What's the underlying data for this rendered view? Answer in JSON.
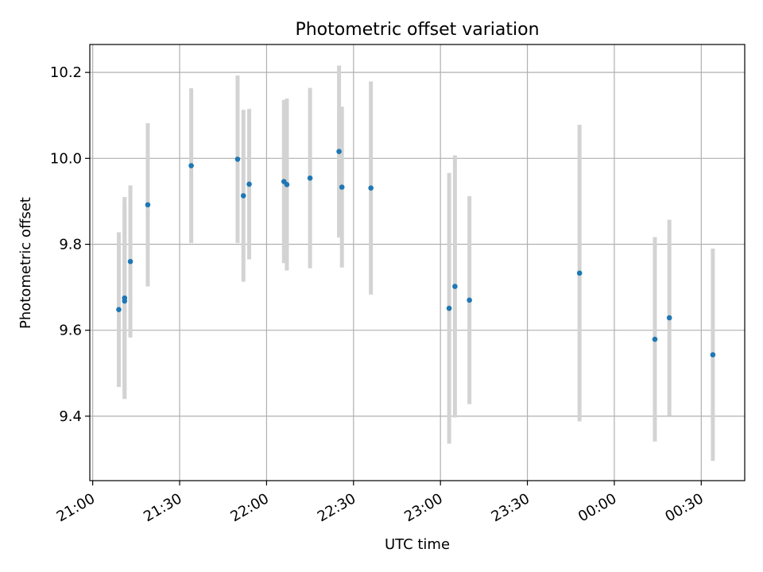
{
  "chart_data": {
    "type": "scatter",
    "title": "Photometric offset variation",
    "xlabel": "UTC time",
    "ylabel": "Photometric offset",
    "x_ticks": [
      "21:00",
      "21:30",
      "22:00",
      "22:30",
      "23:00",
      "23:30",
      "00:00",
      "00:30"
    ],
    "y_ticks": [
      "9.4",
      "9.6",
      "9.8",
      "10.0",
      "10.2"
    ],
    "xlim": [
      "20:59",
      "00:45"
    ],
    "ylim": [
      9.25,
      10.265
    ],
    "grid": true,
    "legend": "none",
    "colors": {
      "point": "#1f77b4",
      "errorbar": "#d3d3d3",
      "grid": "#b0b0b0",
      "axis": "#000000"
    },
    "series": [
      {
        "points": [
          {
            "x": "21:09",
            "y": 9.648,
            "yerr": 0.18
          },
          {
            "x": "21:11",
            "y": 9.675,
            "yerr": 0.235
          },
          {
            "x": "21:11",
            "y": 9.668,
            "yerr": 0.225
          },
          {
            "x": "21:13",
            "y": 9.76,
            "yerr": 0.177
          },
          {
            "x": "21:19",
            "y": 9.892,
            "yerr": 0.19
          },
          {
            "x": "21:34",
            "y": 9.983,
            "yerr": 0.18
          },
          {
            "x": "21:50",
            "y": 9.998,
            "yerr": 0.195
          },
          {
            "x": "21:52",
            "y": 9.913,
            "yerr": 0.2
          },
          {
            "x": "21:54",
            "y": 9.94,
            "yerr": 0.175
          },
          {
            "x": "22:06",
            "y": 9.946,
            "yerr": 0.19
          },
          {
            "x": "22:07",
            "y": 9.939,
            "yerr": 0.2
          },
          {
            "x": "22:15",
            "y": 9.954,
            "yerr": 0.21
          },
          {
            "x": "22:25",
            "y": 10.016,
            "yerr": 0.2
          },
          {
            "x": "22:26",
            "y": 9.933,
            "yerr": 0.187
          },
          {
            "x": "22:36",
            "y": 9.931,
            "yerr": 0.248
          },
          {
            "x": "23:03",
            "y": 9.651,
            "yerr": 0.315
          },
          {
            "x": "23:05",
            "y": 9.702,
            "yerr": 0.305
          },
          {
            "x": "23:10",
            "y": 9.67,
            "yerr": 0.242
          },
          {
            "x": "23:48",
            "y": 9.733,
            "yerr": 0.345
          },
          {
            "x": "00:14",
            "y": 9.579,
            "yerr": 0.238
          },
          {
            "x": "00:19",
            "y": 9.629,
            "yerr": 0.228
          },
          {
            "x": "00:34",
            "y": 9.543,
            "yerr": 0.247
          }
        ]
      }
    ]
  }
}
